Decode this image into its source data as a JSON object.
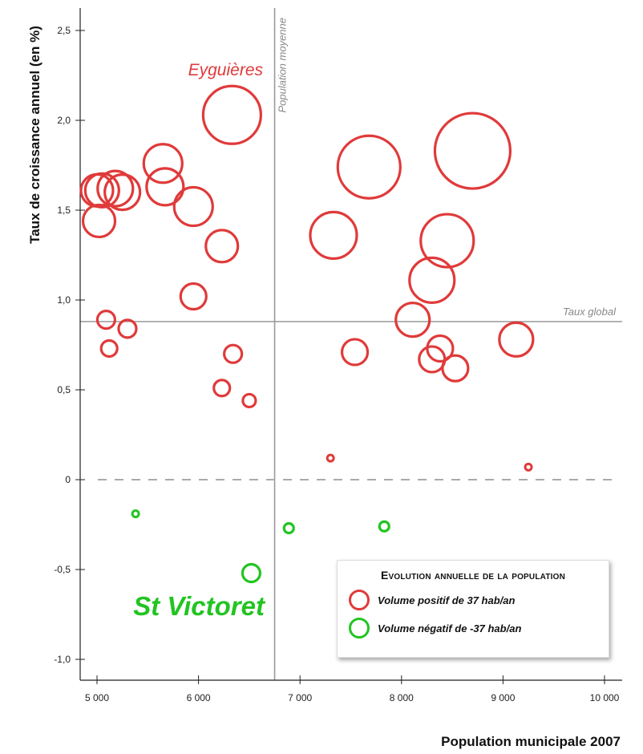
{
  "chart_data": {
    "type": "scatter",
    "xlabel": "Population municipale 2007",
    "ylabel": "Taux de croissance annuel (en %)",
    "xlim": [
      4850,
      10200
    ],
    "ylim": [
      -1.15,
      2.65
    ],
    "x_ticks": [
      5000,
      6000,
      7000,
      8000,
      9000,
      10000
    ],
    "x_tick_labels": [
      "5 000",
      "6 000",
      "7 000",
      "8 000",
      "9 000",
      "10 000"
    ],
    "y_ticks": [
      -1.0,
      -0.5,
      0,
      0.5,
      1.0,
      1.5,
      2.0,
      2.5
    ],
    "y_tick_labels": [
      "-1,0",
      "-0,5",
      "0",
      "0,5",
      "1,0",
      "1,5",
      "2,0",
      "2,5"
    ],
    "reference_lines": {
      "vertical": {
        "x": 6750,
        "label": "Population moyenne"
      },
      "horizontal": {
        "y": 0.88,
        "label": "Taux global"
      },
      "zero": {
        "y": 0
      }
    },
    "annotations": [
      {
        "text": "Eyguières",
        "color": "#e03a3a"
      },
      {
        "text": "St Victoret",
        "color": "#22c422"
      }
    ],
    "series": [
      {
        "name": "Volume positif de 37 hab/an",
        "color": "#e03a3a",
        "points": [
          {
            "x": 5000,
            "y": 1.61,
            "size": 20
          },
          {
            "x": 5050,
            "y": 1.61,
            "size": 21
          },
          {
            "x": 5180,
            "y": 1.62,
            "size": 22
          },
          {
            "x": 5250,
            "y": 1.6,
            "size": 22
          },
          {
            "x": 5020,
            "y": 1.44,
            "size": 20
          },
          {
            "x": 5650,
            "y": 1.76,
            "size": 24
          },
          {
            "x": 5670,
            "y": 1.63,
            "size": 23
          },
          {
            "x": 5950,
            "y": 1.52,
            "size": 24
          },
          {
            "x": 6330,
            "y": 2.03,
            "size": 36
          },
          {
            "x": 6230,
            "y": 1.3,
            "size": 20
          },
          {
            "x": 5950,
            "y": 1.02,
            "size": 16
          },
          {
            "x": 5090,
            "y": 0.89,
            "size": 11
          },
          {
            "x": 5120,
            "y": 0.73,
            "size": 10
          },
          {
            "x": 5300,
            "y": 0.84,
            "size": 11
          },
          {
            "x": 6340,
            "y": 0.7,
            "size": 11
          },
          {
            "x": 6230,
            "y": 0.51,
            "size": 10
          },
          {
            "x": 6500,
            "y": 0.44,
            "size": 8
          },
          {
            "x": 7300,
            "y": 0.12,
            "size": 4
          },
          {
            "x": 7330,
            "y": 1.36,
            "size": 29
          },
          {
            "x": 7680,
            "y": 1.74,
            "size": 39
          },
          {
            "x": 8700,
            "y": 1.83,
            "size": 47
          },
          {
            "x": 8450,
            "y": 1.33,
            "size": 33
          },
          {
            "x": 8300,
            "y": 1.11,
            "size": 28
          },
          {
            "x": 8110,
            "y": 0.89,
            "size": 21
          },
          {
            "x": 7540,
            "y": 0.71,
            "size": 16
          },
          {
            "x": 8300,
            "y": 0.67,
            "size": 16
          },
          {
            "x": 8380,
            "y": 0.73,
            "size": 16
          },
          {
            "x": 8530,
            "y": 0.62,
            "size": 16
          },
          {
            "x": 9130,
            "y": 0.78,
            "size": 21
          },
          {
            "x": 9250,
            "y": 0.07,
            "size": 4
          }
        ]
      },
      {
        "name": "Volume négatif de -37 hab/an",
        "color": "#22c422",
        "points": [
          {
            "x": 5380,
            "y": -0.19,
            "size": 4
          },
          {
            "x": 6520,
            "y": -0.52,
            "size": 11
          },
          {
            "x": 6890,
            "y": -0.27,
            "size": 6
          },
          {
            "x": 7830,
            "y": -0.26,
            "size": 6
          }
        ]
      }
    ],
    "legend": {
      "title": "Evolution annuelle de la population",
      "placement": "bottom-right"
    }
  }
}
